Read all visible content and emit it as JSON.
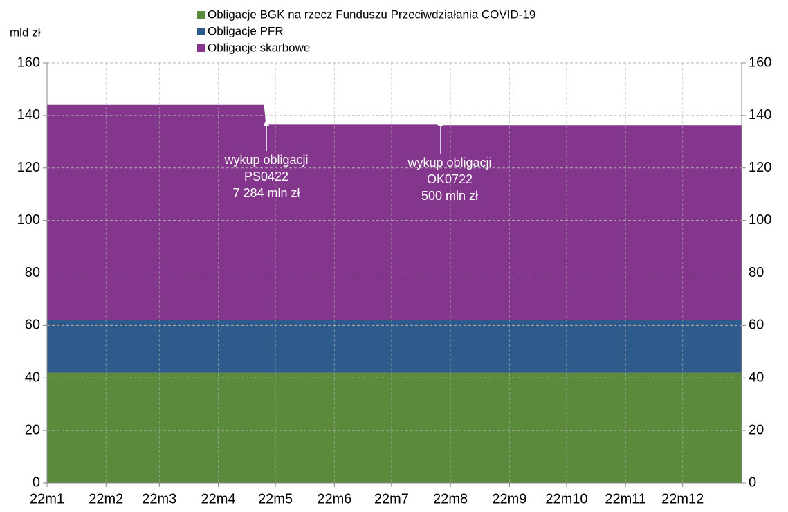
{
  "chart_data": {
    "type": "stacked_area",
    "y_axis_label": "mld zł",
    "x": [
      0,
      114,
      115,
      205,
      206,
      365
    ],
    "xlim": [
      0,
      365
    ],
    "xticks": [
      {
        "value": 0,
        "label": "22m1"
      },
      {
        "value": 31,
        "label": "22m2"
      },
      {
        "value": 59,
        "label": "22m3"
      },
      {
        "value": 90,
        "label": "22m4"
      },
      {
        "value": 120,
        "label": "22m5"
      },
      {
        "value": 151,
        "label": "22m6"
      },
      {
        "value": 181,
        "label": "22m7"
      },
      {
        "value": 212,
        "label": "22m8"
      },
      {
        "value": 243,
        "label": "22m9"
      },
      {
        "value": 273,
        "label": "22m10"
      },
      {
        "value": 304,
        "label": "22m11"
      },
      {
        "value": 334,
        "label": "22m12"
      }
    ],
    "ylim": [
      0,
      160
    ],
    "yticks": [
      0,
      20,
      40,
      60,
      80,
      100,
      120,
      140,
      160
    ],
    "y2lim": [
      0,
      160
    ],
    "y2ticks": [
      0,
      20,
      40,
      60,
      80,
      100,
      120,
      140,
      160
    ],
    "grid": true,
    "series": [
      {
        "name": "Obligacje BGK na rzecz Funduszu Przeciwdziałania COVID-19",
        "color": "#5b8a3c",
        "values": [
          42,
          42,
          42,
          42,
          42,
          42
        ]
      },
      {
        "name": "Obligacje PFR",
        "color": "#2f5a8c",
        "values": [
          20,
          20,
          20,
          20,
          20,
          20
        ]
      },
      {
        "name": "Obligacje skarbowe",
        "color": "#84368c",
        "values": [
          82,
          82,
          74.7,
          74.7,
          74.2,
          74.2
        ]
      }
    ],
    "annotations": [
      {
        "lines": [
          "wykup obligacji",
          "PS0422",
          "7 284 mln zł"
        ]
      },
      {
        "lines": [
          "wykup obligacji",
          "OK0722",
          "500 mln zł"
        ]
      }
    ]
  }
}
